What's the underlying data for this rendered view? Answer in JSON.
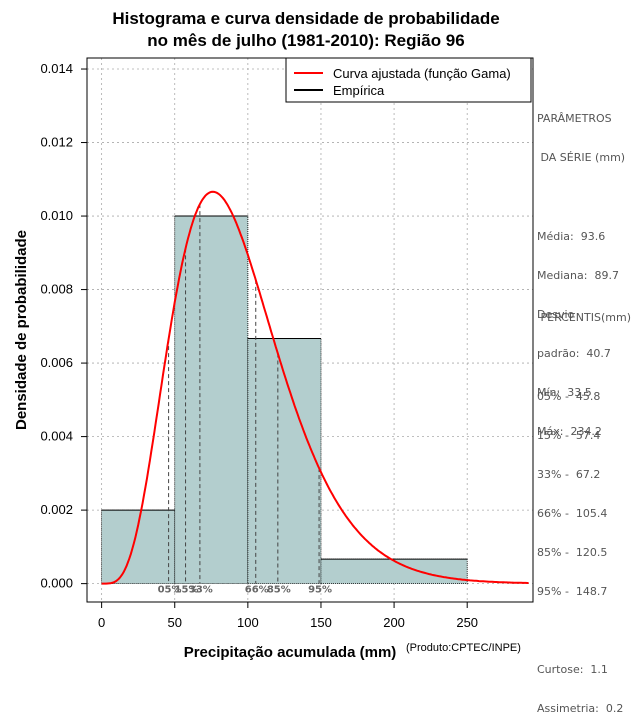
{
  "chart_data": {
    "type": "bar",
    "title_line1": "Histograma e curva densidade de probabilidade",
    "title_line2": "no mês de julho (1981-2010): Região 96",
    "xlabel": "Precipitação acumulada (mm)",
    "ylabel": "Densidade de probabilidade",
    "credit": "(Produto:CPTEC/INPE)",
    "xlim": [
      -10,
      295
    ],
    "ylim": [
      -0.0005,
      0.0143
    ],
    "x_ticks": [
      0,
      50,
      100,
      150,
      200,
      250
    ],
    "y_ticks": [
      "0.000",
      "0.002",
      "0.004",
      "0.006",
      "0.008",
      "0.010",
      "0.012",
      "0.014"
    ],
    "bins": [
      {
        "x0": 0,
        "x1": 50,
        "density": 0.002
      },
      {
        "x0": 50,
        "x1": 100,
        "density": 0.01
      },
      {
        "x0": 100,
        "x1": 150,
        "density": 0.00667
      },
      {
        "x0": 150,
        "x1": 250,
        "density": 0.000667
      }
    ],
    "gamma_fit": {
      "shape": 5.3,
      "scale": 17.7
    },
    "percentile_lines": [
      {
        "label": "05%",
        "value": 45.8
      },
      {
        "label": "15%",
        "value": 57.4
      },
      {
        "label": "33%",
        "value": 67.2
      },
      {
        "label": "66%",
        "value": 105.4
      },
      {
        "label": "85%",
        "value": 120.5
      },
      {
        "label": "95%",
        "value": 148.7
      }
    ],
    "legend": [
      {
        "label": "Curva ajustada (função Gama)",
        "color": "#ff0000"
      },
      {
        "label": "Empírica",
        "color": "#000000"
      }
    ],
    "colors": {
      "bar_fill": "#b3cece",
      "curve": "#ff0000",
      "grid": "#aaaaaa"
    }
  },
  "parametros": {
    "title1": "PARÂMETROS",
    "title2": " DA SÉRIE (mm)",
    "media": "Média:  93.6",
    "mediana": "Mediana:  89.7",
    "desvio1": "Desvio",
    "desvio2": "padrão:  40.7",
    "min": "Mín:  33.5",
    "max": "Máx:  234.2"
  },
  "percentis": {
    "title": " PERCENTIS(mm)",
    "p05": "05% -  45.8",
    "p15": "15% -  57.4",
    "p33": "33% -  67.2",
    "p66": "66% -  105.4",
    "p85": "85% -  120.5",
    "p95": "95% -  148.7",
    "curtose": "Curtose:  1.1",
    "assimetria": "Assimetria:  0.2"
  }
}
